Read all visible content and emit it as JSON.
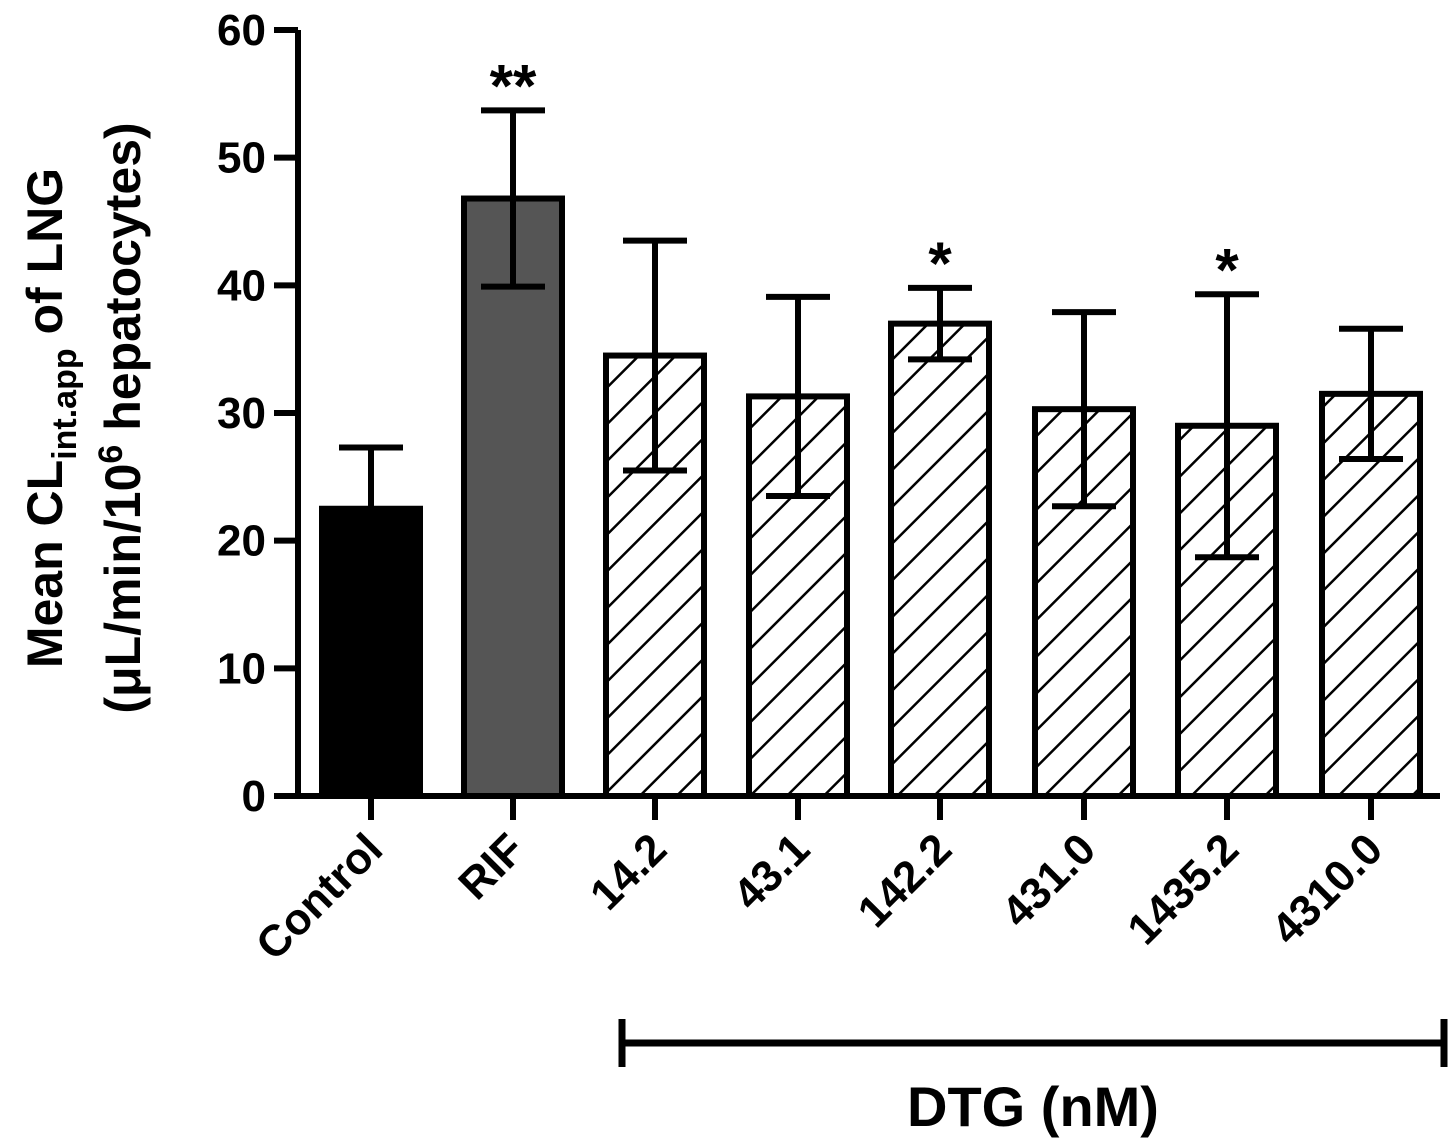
{
  "chart_data": {
    "type": "bar",
    "title": "",
    "xlabel": "",
    "ylabel_line1": "Mean CL",
    "ylabel_sub": "int.app",
    "ylabel_after": " of LNG",
    "ylabel_line2_pre": "(μL/min/10",
    "ylabel_line2_sup": "6",
    "ylabel_line2_post": " hepatocytes)",
    "ylim": [
      0,
      60
    ],
    "yticks": [
      "0",
      "10",
      "20",
      "30",
      "40",
      "50",
      "60"
    ],
    "categories": [
      "Control",
      "RIF",
      "14.2",
      "43.1",
      "142.2",
      "431.0",
      "1435.2",
      "4310.0"
    ],
    "values": [
      22.5,
      46.8,
      34.5,
      31.3,
      37.0,
      30.3,
      29.0,
      31.5
    ],
    "errors": [
      4.8,
      6.9,
      9.0,
      7.8,
      2.8,
      7.6,
      10.3,
      5.1
    ],
    "significance": [
      "",
      "**",
      "",
      "",
      "*",
      "",
      "*",
      ""
    ],
    "fills": [
      "solid-black",
      "solid-gray",
      "hatch",
      "hatch",
      "hatch",
      "hatch",
      "hatch",
      "hatch"
    ],
    "colors": {
      "black": "#000000",
      "gray": "#555555",
      "hatch_bg": "#ffffff"
    },
    "group_bracket": {
      "label": "DTG (nM)",
      "from_index": 2,
      "to_index": 7
    },
    "grid": false,
    "legend": "none"
  }
}
